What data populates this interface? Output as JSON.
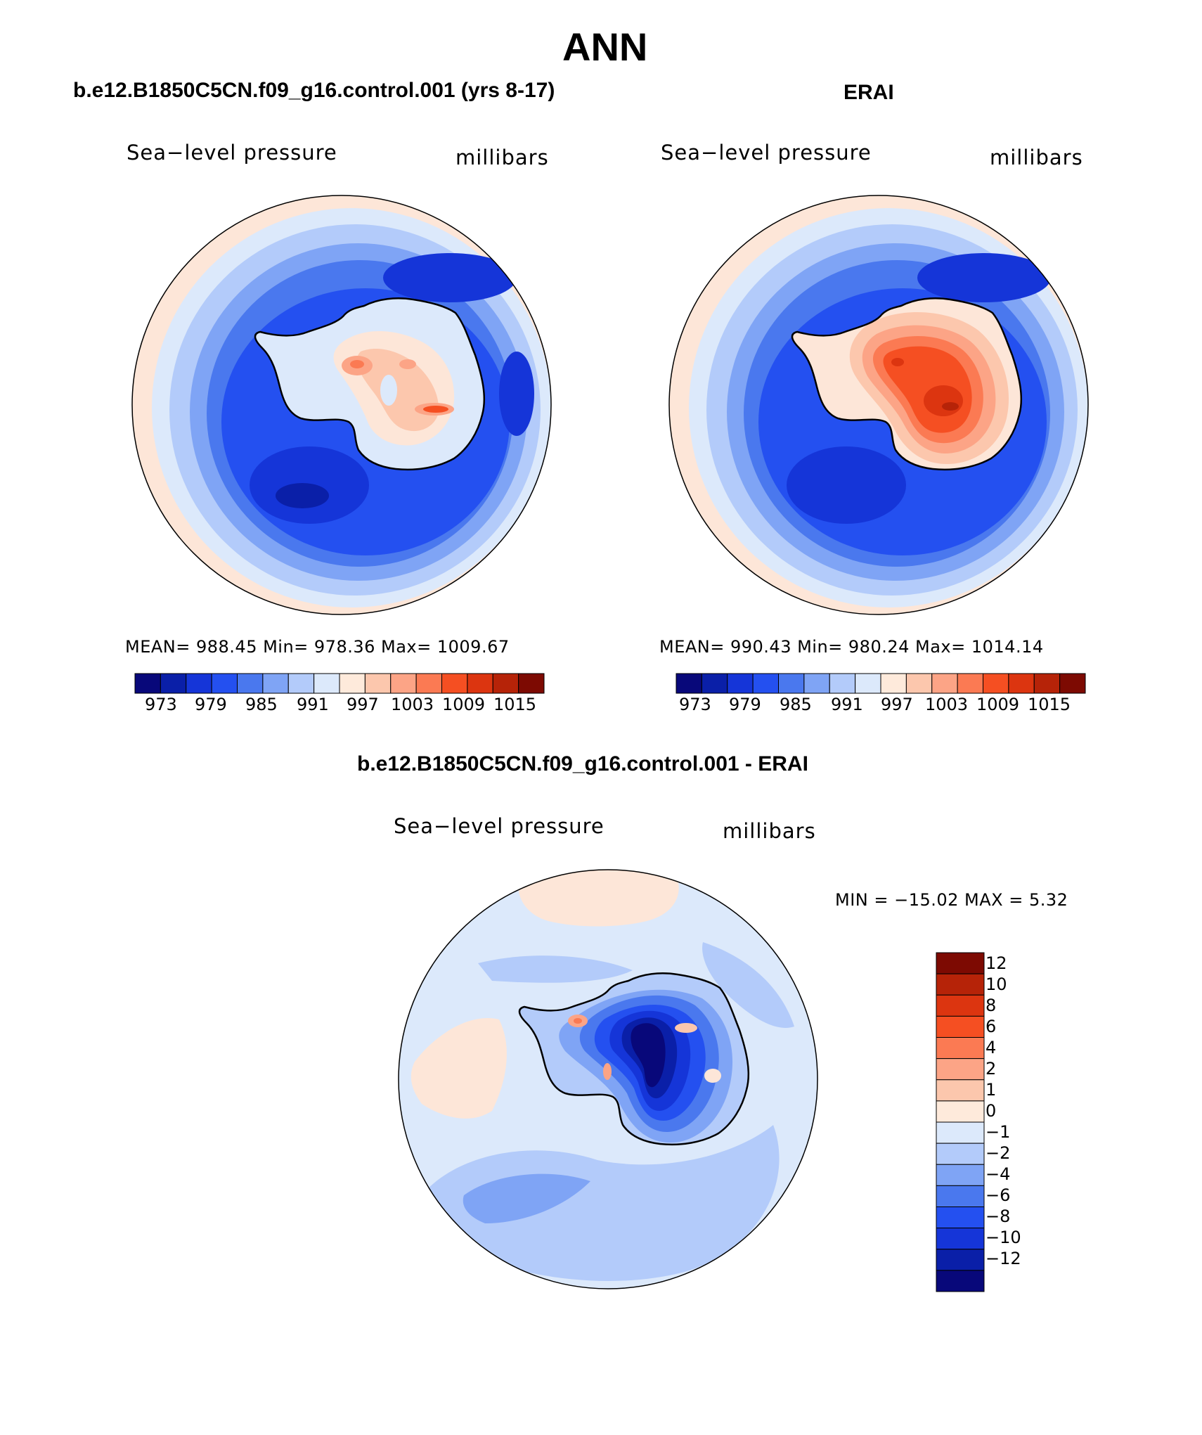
{
  "figure": {
    "title": "ANN",
    "panels": [
      {
        "id": "model",
        "title": "b.e12.B1850C5CN.f09_g16.control.001 (yrs 8-17)",
        "left_label": "Sea−level pressure",
        "right_label": "millibars",
        "stats": "MEAN=  988.45    Min=  978.36    Max=  1009.67",
        "colorbar_ticks": [
          "973",
          "979",
          "985",
          "991",
          "997",
          "1003",
          "1009",
          "1015"
        ]
      },
      {
        "id": "obs",
        "title": "ERAI",
        "left_label": "Sea−level pressure",
        "right_label": "millibars",
        "stats": "MEAN=  990.43    Min=  980.24    Max=  1014.14",
        "colorbar_ticks": [
          "973",
          "979",
          "985",
          "991",
          "997",
          "1003",
          "1009",
          "1015"
        ]
      },
      {
        "id": "diff",
        "title": "b.e12.B1850C5CN.f09_g16.control.001 - ERAI",
        "left_label": "Sea−level pressure",
        "right_label": "millibars",
        "stats": "MIN  =  −15.02  MAX  =      5.32",
        "colorbar_ticks": [
          "12",
          "10",
          "8",
          "6",
          "4",
          "2",
          "1",
          "0",
          "−1",
          "−2",
          "−4",
          "−6",
          "−8",
          "−10",
          "−12"
        ]
      }
    ]
  },
  "colors": {
    "abs_scale": [
      "#08087a",
      "#0a1fa8",
      "#1535d8",
      "#2450f0",
      "#4a78ee",
      "#7fa4f5",
      "#b3cbfa",
      "#dce9fb",
      "#feeadb",
      "#fcc7ad",
      "#fca486",
      "#fb7a53",
      "#f54f22",
      "#dc3510",
      "#b62308",
      "#7d0a02"
    ],
    "diff_scale": [
      "#7d0a02",
      "#b62308",
      "#dc3510",
      "#f54f22",
      "#fb7a53",
      "#fca486",
      "#fcc7ad",
      "#feeadb",
      "#dce9fb",
      "#b3cbfa",
      "#7fa4f5",
      "#4a78ee",
      "#2450f0",
      "#1535d8",
      "#0a1fa8",
      "#08087a"
    ]
  }
}
